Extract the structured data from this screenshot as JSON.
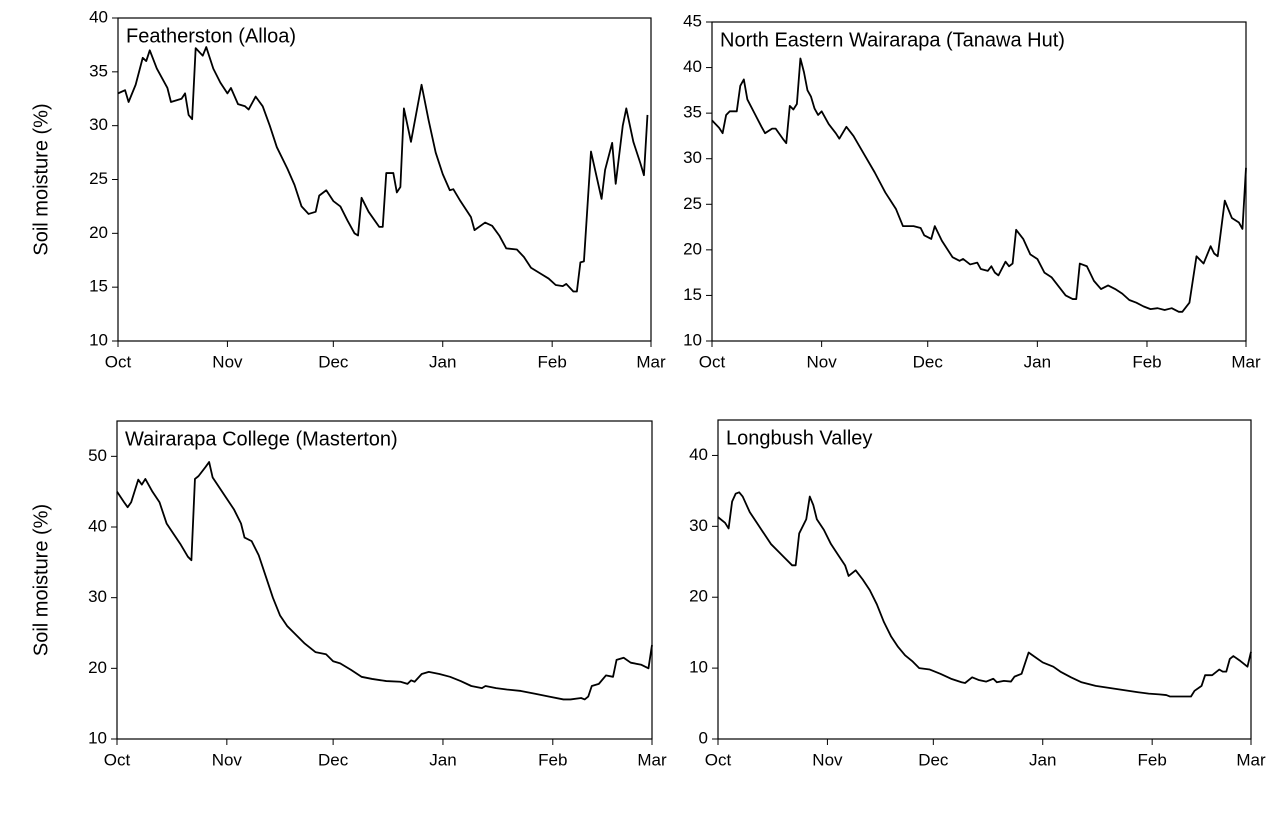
{
  "chart_data": [
    {
      "type": "line",
      "title": "Featherston (Alloa)",
      "ylabel": "Soil moisture (%)",
      "color": "#000000",
      "x": [
        0,
        2,
        3,
        5,
        7,
        8,
        9,
        11,
        14,
        15,
        18,
        19,
        20,
        21,
        22,
        24,
        25,
        27,
        29,
        31,
        32,
        34,
        36,
        37,
        39,
        41,
        43,
        45,
        48,
        50,
        52,
        54,
        56,
        57,
        59,
        61,
        63,
        65,
        67,
        68,
        69,
        71,
        74,
        75,
        76,
        78,
        79,
        80,
        81,
        83,
        86,
        88,
        90,
        92,
        94,
        95,
        97,
        100,
        101,
        104,
        106,
        108,
        110,
        113,
        115,
        117,
        120,
        122,
        124,
        126,
        127,
        129,
        130,
        131,
        132,
        134,
        137,
        138,
        140,
        141,
        143,
        144,
        146,
        148,
        149,
        150
      ],
      "values": [
        33,
        33.3,
        32.2,
        33.8,
        36.3,
        36,
        37,
        35.3,
        33.5,
        32.2,
        32.5,
        33,
        31,
        30.6,
        37.2,
        36.5,
        37.3,
        35.3,
        34,
        33,
        33.5,
        32,
        31.8,
        31.5,
        32.7,
        31.8,
        30,
        28,
        26,
        24.5,
        22.5,
        21.8,
        22,
        23.5,
        24,
        23,
        22.5,
        21.2,
        20,
        19.8,
        23.3,
        22,
        20.6,
        20.6,
        25.6,
        25.6,
        23.8,
        24.3,
        31.6,
        28.5,
        33.8,
        30.5,
        27.5,
        25.5,
        24,
        24.1,
        23,
        21.5,
        20.3,
        21,
        20.7,
        19.8,
        18.6,
        18.5,
        17.8,
        16.8,
        16.2,
        15.8,
        15.2,
        15.1,
        15.3,
        14.6,
        14.6,
        17.3,
        17.4,
        27.6,
        23.2,
        25.9,
        28.4,
        24.6,
        30,
        31.6,
        28.5,
        26.5,
        25.4,
        31
      ],
      "xlim": [
        0,
        151
      ],
      "xticks": [
        {
          "value": 0,
          "label": "Oct"
        },
        {
          "value": 31,
          "label": "Nov"
        },
        {
          "value": 61,
          "label": "Dec"
        },
        {
          "value": 92,
          "label": "Jan"
        },
        {
          "value": 123,
          "label": "Feb"
        },
        {
          "value": 151,
          "label": "Mar"
        }
      ],
      "ylim": [
        10,
        40
      ],
      "yticks": [
        10,
        15,
        20,
        25,
        30,
        35,
        40
      ]
    },
    {
      "type": "line",
      "title": "North Eastern Wairarapa (Tanawa Hut)",
      "color": "#000000",
      "x": [
        0,
        2,
        3,
        4,
        5,
        7,
        8,
        9,
        10,
        12,
        14,
        15,
        17,
        18,
        20,
        21,
        22,
        23,
        24,
        25,
        26,
        27,
        28,
        29,
        30,
        31,
        33,
        35,
        36,
        38,
        40,
        43,
        46,
        49,
        52,
        54,
        57,
        59,
        60,
        62,
        63,
        65,
        68,
        70,
        71,
        73,
        75,
        76,
        78,
        79,
        80,
        81,
        83,
        84,
        85,
        86,
        88,
        90,
        92,
        94,
        96,
        98,
        100,
        102,
        103,
        104,
        106,
        108,
        110,
        112,
        114,
        116,
        118,
        120,
        122,
        124,
        126,
        128,
        130,
        132,
        133,
        135,
        137,
        139,
        141,
        142,
        143,
        145,
        147,
        149,
        150,
        151
      ],
      "values": [
        34.2,
        33.4,
        32.8,
        34.8,
        35.2,
        35.2,
        38,
        38.7,
        36.5,
        35,
        33.5,
        32.8,
        33.3,
        33.3,
        32.2,
        31.7,
        35.8,
        35.4,
        36,
        41,
        39.5,
        37.5,
        36.8,
        35.5,
        34.8,
        35.2,
        33.8,
        32.8,
        32.2,
        33.5,
        32.5,
        30.5,
        28.5,
        26.3,
        24.5,
        22.6,
        22.6,
        22.4,
        21.6,
        21.2,
        22.6,
        21,
        19.2,
        18.8,
        19,
        18.4,
        18.6,
        17.9,
        17.7,
        18.2,
        17.5,
        17.2,
        18.7,
        18.2,
        18.5,
        22.2,
        21.2,
        19.5,
        19,
        17.5,
        17,
        16,
        15,
        14.6,
        14.6,
        18.5,
        18.2,
        16.6,
        15.7,
        16.1,
        15.7,
        15.2,
        14.5,
        14.2,
        13.8,
        13.5,
        13.6,
        13.4,
        13.6,
        13.2,
        13.2,
        14.2,
        19.3,
        18.5,
        20.4,
        19.6,
        19.3,
        25.4,
        23.5,
        23,
        22.3,
        29
      ],
      "xlim": [
        0,
        151
      ],
      "xticks": [
        {
          "value": 0,
          "label": "Oct"
        },
        {
          "value": 31,
          "label": "Nov"
        },
        {
          "value": 61,
          "label": "Dec"
        },
        {
          "value": 92,
          "label": "Jan"
        },
        {
          "value": 123,
          "label": "Feb"
        },
        {
          "value": 151,
          "label": "Mar"
        }
      ],
      "ylim": [
        10,
        45
      ],
      "yticks": [
        10,
        15,
        20,
        25,
        30,
        35,
        40,
        45
      ]
    },
    {
      "type": "line",
      "title": "Wairarapa College (Masterton)",
      "ylabel": "Soil moisture (%)",
      "color": "#000000",
      "x": [
        0,
        2,
        3,
        4,
        6,
        7,
        8,
        10,
        12,
        14,
        16,
        18,
        20,
        21,
        22,
        23,
        25,
        26,
        27,
        29,
        31,
        33,
        35,
        36,
        38,
        40,
        42,
        44,
        46,
        48,
        50,
        53,
        56,
        59,
        61,
        63,
        66,
        69,
        72,
        76,
        80,
        82,
        83,
        84,
        86,
        88,
        91,
        94,
        97,
        100,
        103,
        104,
        107,
        110,
        114,
        118,
        122,
        126,
        128,
        131,
        132,
        133,
        134,
        136,
        138,
        140,
        141,
        143,
        145,
        148,
        150,
        151
      ],
      "values": [
        45,
        43.5,
        42.8,
        43.5,
        46.7,
        46,
        46.8,
        45,
        43.5,
        40.5,
        39,
        37.5,
        35.8,
        35.3,
        46.8,
        47.2,
        48.5,
        49.2,
        47,
        45.5,
        44,
        42.5,
        40.5,
        38.5,
        38,
        36,
        33,
        30,
        27.5,
        26,
        25,
        23.5,
        22.3,
        22,
        21,
        20.7,
        19.8,
        18.8,
        18.5,
        18.2,
        18.1,
        17.8,
        18.3,
        18.1,
        19.2,
        19.5,
        19.2,
        18.8,
        18.2,
        17.5,
        17.2,
        17.5,
        17.2,
        17,
        16.8,
        16.4,
        16,
        15.6,
        15.6,
        15.8,
        15.6,
        16,
        17.5,
        17.8,
        19,
        18.8,
        21.2,
        21.5,
        20.8,
        20.5,
        20,
        23.3
      ],
      "xlim": [
        0,
        151
      ],
      "xticks": [
        {
          "value": 0,
          "label": "Oct"
        },
        {
          "value": 31,
          "label": "Nov"
        },
        {
          "value": 61,
          "label": "Dec"
        },
        {
          "value": 92,
          "label": "Jan"
        },
        {
          "value": 123,
          "label": "Feb"
        },
        {
          "value": 151,
          "label": "Mar"
        }
      ],
      "ylim": [
        10,
        55
      ],
      "yticks": [
        10,
        20,
        30,
        40,
        50
      ]
    },
    {
      "type": "line",
      "title": "Longbush Valley",
      "color": "#000000",
      "x": [
        0,
        2,
        3,
        4,
        5,
        6,
        7,
        9,
        11,
        13,
        15,
        17,
        19,
        21,
        22,
        23,
        25,
        26,
        27,
        28,
        30,
        32,
        34,
        36,
        37,
        39,
        41,
        43,
        45,
        47,
        49,
        51,
        53,
        55,
        57,
        60,
        63,
        66,
        69,
        70,
        72,
        74,
        76,
        78,
        79,
        81,
        83,
        84,
        86,
        88,
        90,
        92,
        95,
        97,
        100,
        103,
        107,
        111,
        115,
        119,
        122,
        125,
        127,
        128,
        131,
        134,
        135,
        137,
        138,
        140,
        142,
        143,
        144,
        145,
        146,
        148,
        150,
        151
      ],
      "values": [
        31.3,
        30.5,
        29.7,
        33.5,
        34.6,
        34.8,
        34.2,
        32,
        30.5,
        29,
        27.5,
        26.5,
        25.5,
        24.5,
        24.5,
        29,
        31,
        34.2,
        33,
        31,
        29.5,
        27.5,
        26,
        24.5,
        23,
        23.8,
        22.5,
        21,
        19,
        16.5,
        14.5,
        13,
        11.8,
        11,
        10,
        9.8,
        9.2,
        8.5,
        8,
        7.9,
        8.7,
        8.3,
        8.1,
        8.5,
        8,
        8.2,
        8.1,
        8.8,
        9.2,
        12.2,
        11.5,
        10.8,
        10.2,
        9.5,
        8.7,
        8,
        7.5,
        7.2,
        6.9,
        6.6,
        6.4,
        6.3,
        6.2,
        6,
        6,
        6,
        6.8,
        7.5,
        9,
        9,
        9.8,
        9.5,
        9.5,
        11.3,
        11.7,
        11,
        10.2,
        12.3
      ],
      "xlim": [
        0,
        151
      ],
      "xticks": [
        {
          "value": 0,
          "label": "Oct"
        },
        {
          "value": 31,
          "label": "Nov"
        },
        {
          "value": 61,
          "label": "Dec"
        },
        {
          "value": 92,
          "label": "Jan"
        },
        {
          "value": 123,
          "label": "Feb"
        },
        {
          "value": 151,
          "label": "Mar"
        }
      ],
      "ylim": [
        0,
        45
      ],
      "yticks": [
        0,
        10,
        20,
        30,
        40
      ]
    }
  ]
}
